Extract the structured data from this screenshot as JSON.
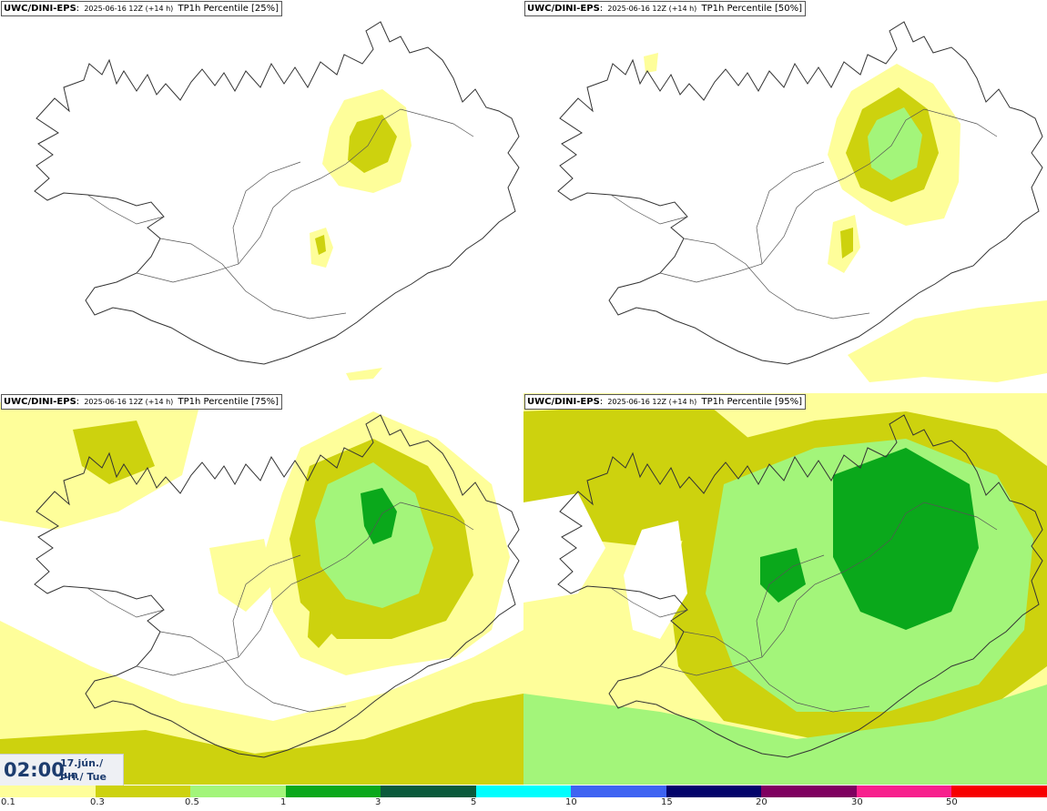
{
  "panels": [
    {
      "model": "UWC/DINI-EPS",
      "run": "2025-06-16 12Z (+14 h)",
      "param": "TP1h Percentile [25%]"
    },
    {
      "model": "UWC/DINI-EPS",
      "run": "2025-06-16 12Z (+14 h)",
      "param": "TP1h Percentile [50%]"
    },
    {
      "model": "UWC/DINI-EPS",
      "run": "2025-06-16 12Z (+14 h)",
      "param": "TP1h Percentile [75%]"
    },
    {
      "model": "UWC/DINI-EPS",
      "run": "2025-06-16 12Z (+14 h)",
      "param": "TP1h Percentile [95%]"
    }
  ],
  "valid_time": {
    "time": "02:00",
    "date_line1": "17.jún./ Jun",
    "date_line2": "Þri./ Tue"
  },
  "legend": {
    "colors": [
      "#fefe9a",
      "#cdd20e",
      "#a3f57a",
      "#0aa81b",
      "#0a5a3c",
      "#00fdfd",
      "#3e63f2",
      "#02036b",
      "#7f0060",
      "#f7208d",
      "#f70000"
    ],
    "tick_labels": [
      "0.1",
      "0.3",
      "0.5",
      "1",
      "3",
      "5",
      "10",
      "15",
      "20",
      "30",
      "50"
    ]
  }
}
